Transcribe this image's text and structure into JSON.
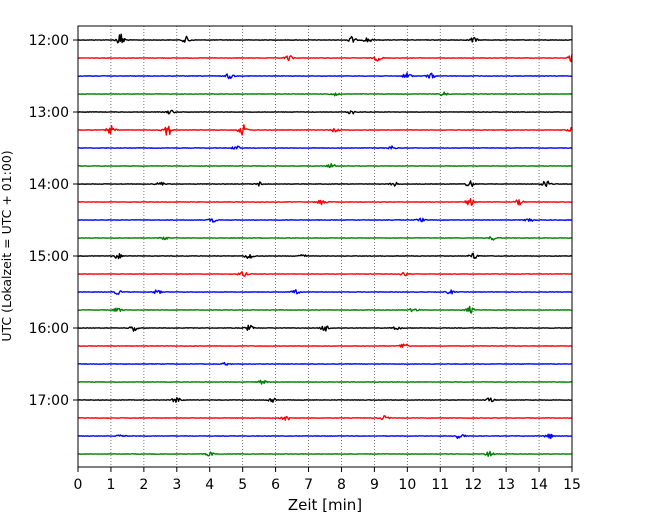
{
  "chart_data": {
    "type": "line",
    "title": "",
    "xlabel": "Zeit  [min]",
    "ylabel": "UTC (Lokalzeit = UTC + 01:00)",
    "xlim": [
      0,
      15
    ],
    "x_ticks": [
      "0",
      "1",
      "2",
      "3",
      "4",
      "5",
      "6",
      "7",
      "8",
      "9",
      "10",
      "11",
      "12",
      "13",
      "14",
      "15"
    ],
    "y_ticks": [
      "12:00",
      "13:00",
      "14:00",
      "15:00",
      "16:00",
      "17:00"
    ],
    "grid": "vertical dotted at each minute",
    "trace_interval_min": 15,
    "color_cycle": [
      "#000000",
      "#ff0000",
      "#0000ff",
      "#008000"
    ],
    "traces": [
      {
        "start": "12:00",
        "color": "#000000",
        "bursts": [
          [
            1.3,
            1.0
          ],
          [
            3.3,
            0.5
          ],
          [
            8.3,
            0.5
          ],
          [
            8.8,
            0.4
          ],
          [
            12.0,
            0.4
          ]
        ]
      },
      {
        "start": "12:15",
        "color": "#ff0000",
        "bursts": [
          [
            6.4,
            0.4
          ],
          [
            9.1,
            0.4
          ],
          [
            15.0,
            0.6
          ]
        ]
      },
      {
        "start": "12:30",
        "color": "#0000ff",
        "bursts": [
          [
            4.6,
            0.4
          ],
          [
            10.0,
            0.5
          ],
          [
            10.7,
            0.4
          ]
        ]
      },
      {
        "start": "12:45",
        "color": "#008000",
        "bursts": [
          [
            7.8,
            0.4
          ],
          [
            11.1,
            0.3
          ]
        ]
      },
      {
        "start": "13:00",
        "color": "#000000",
        "bursts": [
          [
            2.8,
            0.3
          ],
          [
            8.3,
            0.3
          ]
        ]
      },
      {
        "start": "13:15",
        "color": "#ff0000",
        "bursts": [
          [
            1.0,
            0.6
          ],
          [
            2.7,
            1.0
          ],
          [
            5.0,
            0.8
          ],
          [
            7.8,
            0.3
          ],
          [
            15.0,
            0.4
          ]
        ]
      },
      {
        "start": "13:30",
        "color": "#0000ff",
        "bursts": [
          [
            4.8,
            0.3
          ],
          [
            9.5,
            0.3
          ]
        ]
      },
      {
        "start": "13:45",
        "color": "#008000",
        "bursts": [
          [
            7.7,
            0.3
          ]
        ]
      },
      {
        "start": "14:00",
        "color": "#000000",
        "bursts": [
          [
            2.5,
            0.3
          ],
          [
            5.5,
            0.3
          ],
          [
            9.6,
            0.3
          ],
          [
            11.9,
            0.5
          ],
          [
            14.2,
            0.6
          ]
        ]
      },
      {
        "start": "14:15",
        "color": "#ff0000",
        "bursts": [
          [
            7.4,
            0.5
          ],
          [
            11.9,
            0.5
          ],
          [
            13.4,
            0.4
          ]
        ]
      },
      {
        "start": "14:30",
        "color": "#0000ff",
        "bursts": [
          [
            4.1,
            0.3
          ],
          [
            10.4,
            0.3
          ],
          [
            13.7,
            0.3
          ]
        ]
      },
      {
        "start": "14:45",
        "color": "#008000",
        "bursts": [
          [
            2.6,
            0.3
          ],
          [
            12.6,
            0.3
          ]
        ]
      },
      {
        "start": "15:00",
        "color": "#000000",
        "bursts": [
          [
            1.2,
            0.4
          ],
          [
            5.2,
            0.5
          ],
          [
            12.0,
            0.5
          ],
          [
            6.8,
            0.3
          ]
        ]
      },
      {
        "start": "15:15",
        "color": "#ff0000",
        "bursts": [
          [
            5.0,
            0.4
          ],
          [
            9.9,
            0.3
          ]
        ]
      },
      {
        "start": "15:30",
        "color": "#0000ff",
        "bursts": [
          [
            1.2,
            0.3
          ],
          [
            2.4,
            0.3
          ],
          [
            6.6,
            0.3
          ],
          [
            11.3,
            0.3
          ]
        ]
      },
      {
        "start": "15:45",
        "color": "#008000",
        "bursts": [
          [
            1.2,
            0.3
          ],
          [
            10.2,
            0.3
          ],
          [
            11.9,
            0.5
          ]
        ]
      },
      {
        "start": "16:00",
        "color": "#000000",
        "bursts": [
          [
            1.7,
            0.5
          ],
          [
            5.2,
            0.4
          ],
          [
            7.5,
            0.5
          ],
          [
            9.7,
            0.3
          ]
        ]
      },
      {
        "start": "16:15",
        "color": "#ff0000",
        "bursts": [
          [
            9.9,
            0.5
          ]
        ]
      },
      {
        "start": "16:30",
        "color": "#0000ff",
        "bursts": [
          [
            4.5,
            0.2
          ]
        ]
      },
      {
        "start": "16:45",
        "color": "#008000",
        "bursts": [
          [
            5.6,
            0.3
          ]
        ]
      },
      {
        "start": "17:00",
        "color": "#000000",
        "bursts": [
          [
            3.0,
            0.5
          ],
          [
            5.9,
            0.4
          ],
          [
            12.5,
            0.3
          ]
        ]
      },
      {
        "start": "17:15",
        "color": "#ff0000",
        "bursts": [
          [
            6.3,
            0.5
          ],
          [
            9.3,
            0.3
          ]
        ]
      },
      {
        "start": "17:30",
        "color": "#0000ff",
        "bursts": [
          [
            11.6,
            0.5
          ],
          [
            14.3,
            0.4
          ],
          [
            1.3,
            0.2
          ]
        ]
      },
      {
        "start": "17:45",
        "color": "#008000",
        "bursts": [
          [
            4.0,
            0.3
          ],
          [
            12.5,
            0.4
          ]
        ]
      }
    ]
  }
}
